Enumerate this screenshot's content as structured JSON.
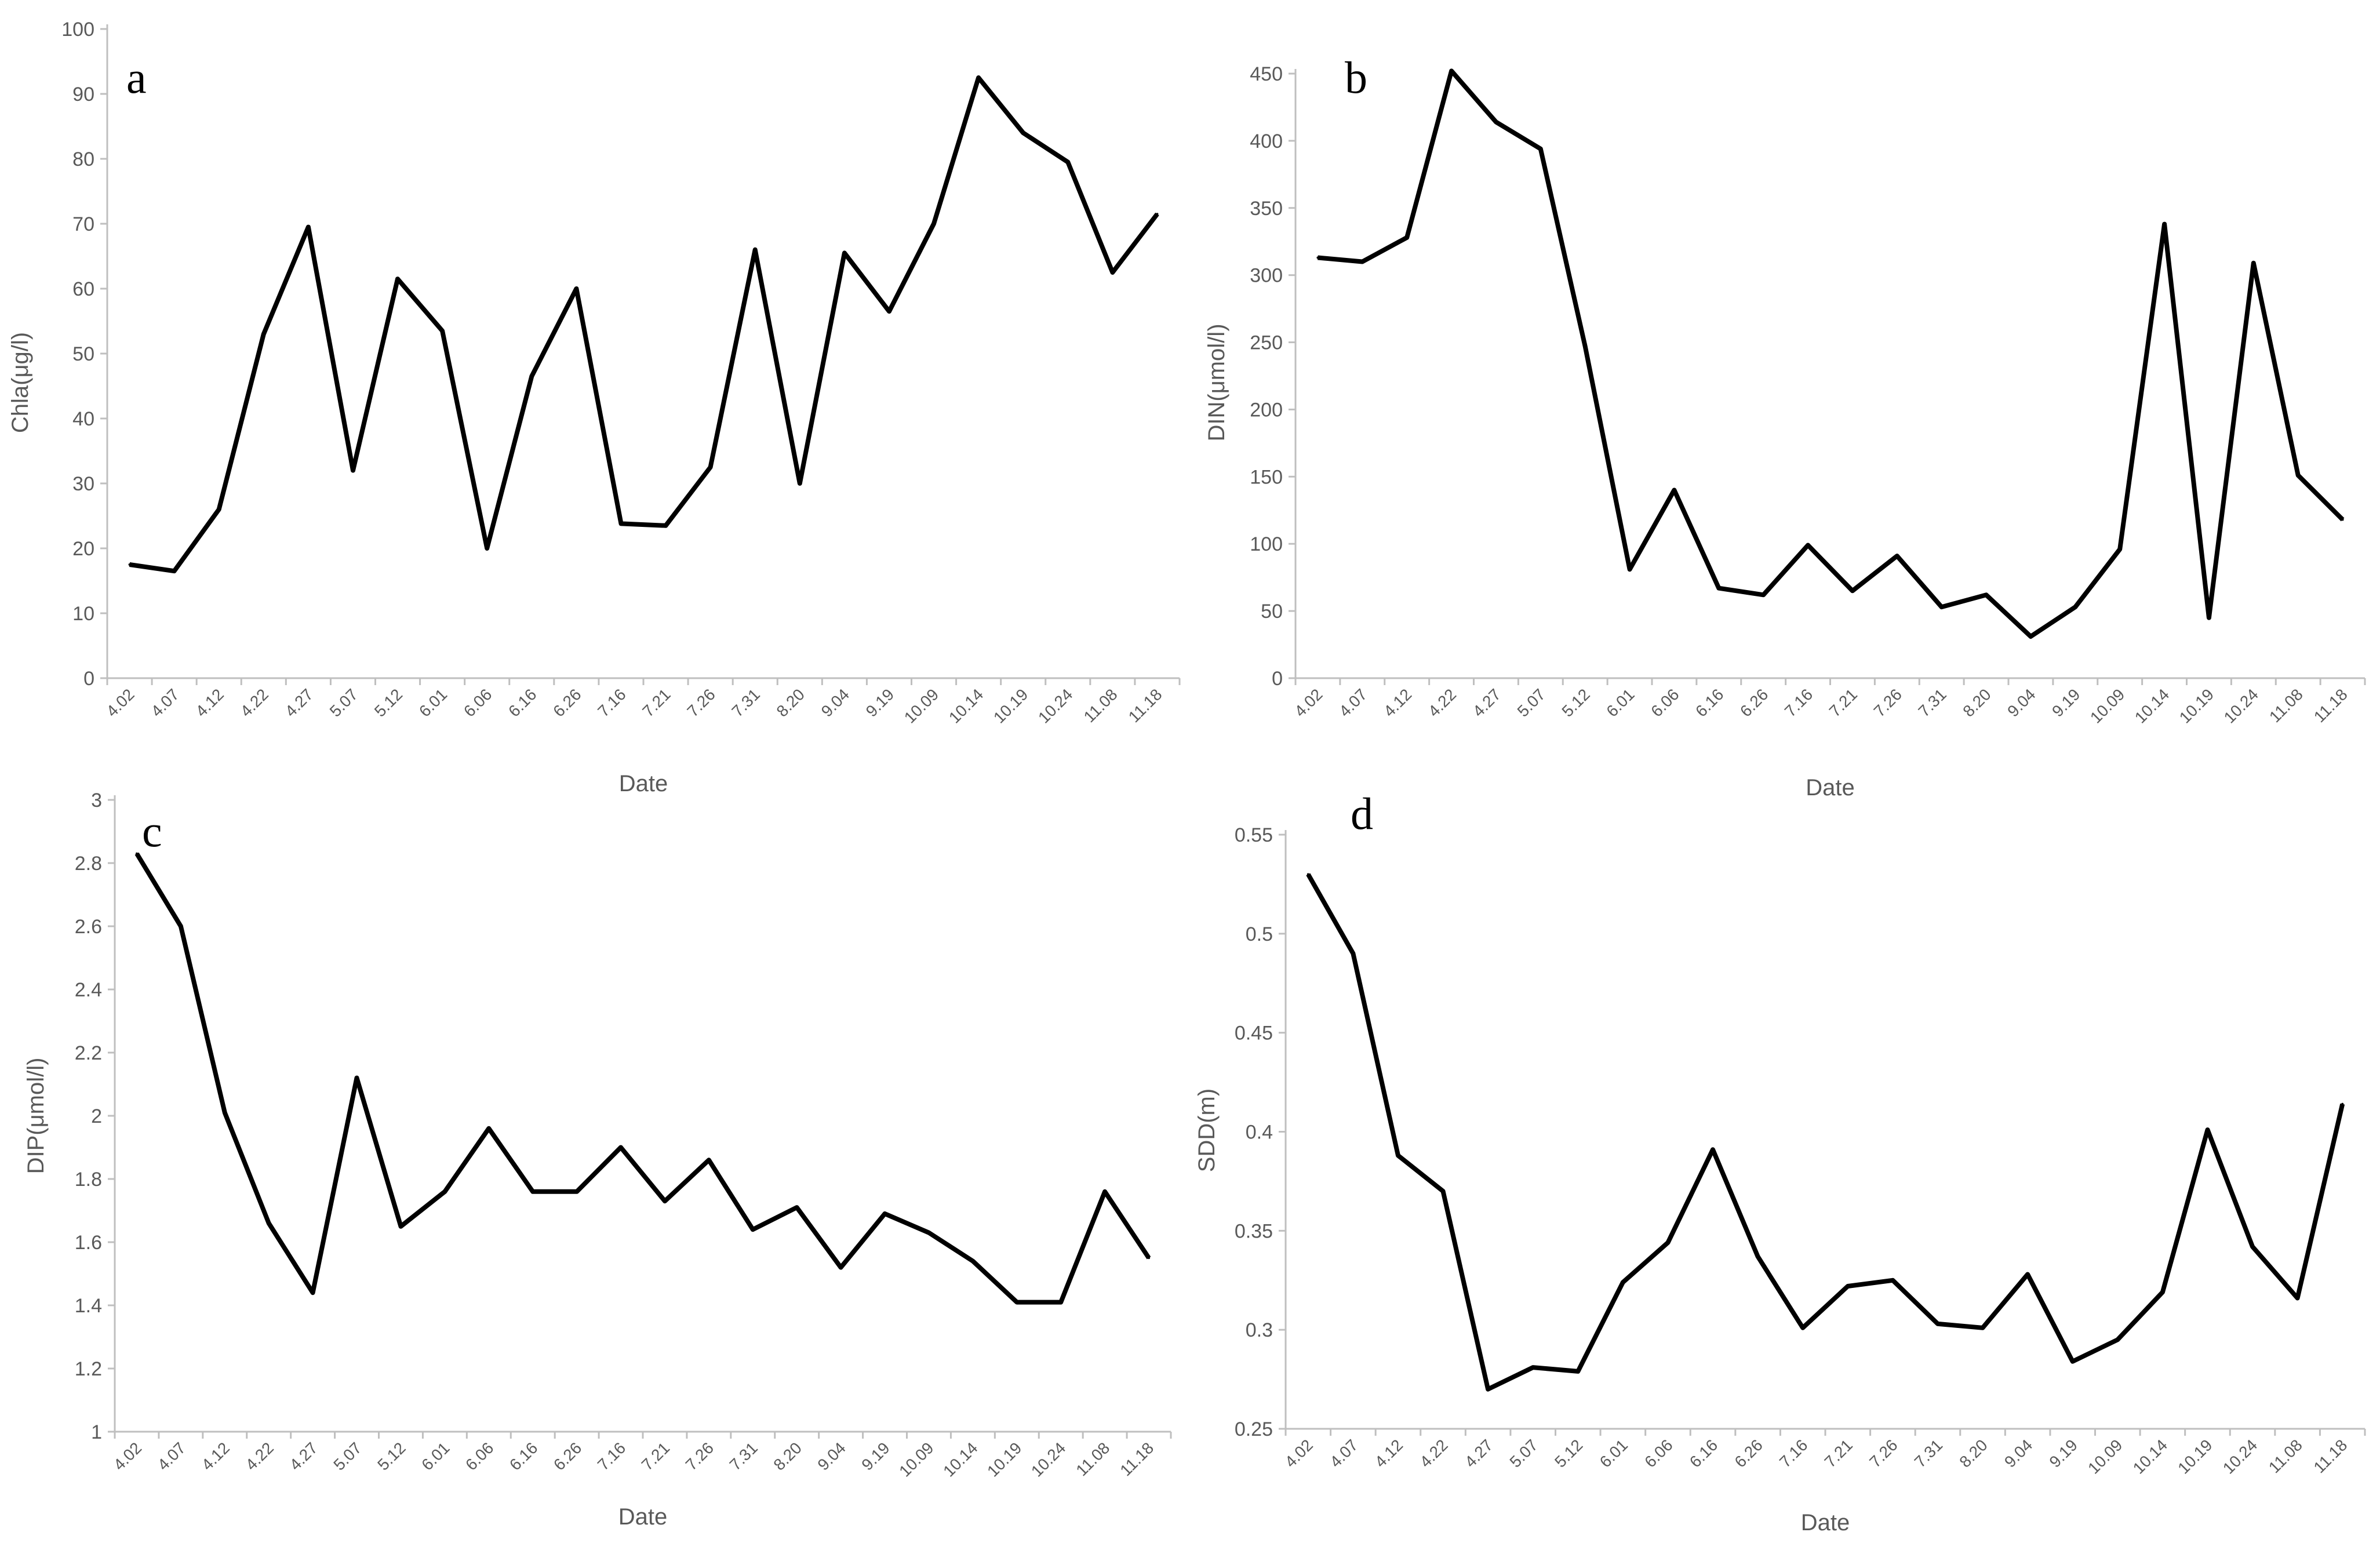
{
  "chart_data": [
    {
      "type": "line",
      "panel_label": "a",
      "xlabel": "Date",
      "ylabel": "Chla(μg/l)",
      "ylim": [
        0,
        100
      ],
      "yticks": [
        "0",
        "10",
        "20",
        "30",
        "40",
        "50",
        "60",
        "70",
        "80",
        "90",
        "100"
      ],
      "categories": [
        "4.02",
        "4.07",
        "4.12",
        "4.22",
        "4.27",
        "5.07",
        "5.12",
        "6.01",
        "6.06",
        "6.16",
        "6.26",
        "7.16",
        "7.21",
        "7.26",
        "7.31",
        "8.20",
        "9.04",
        "9.19",
        "10.09",
        "10.14",
        "10.19",
        "10.24",
        "11.08",
        "11.18"
      ],
      "values": [
        17.5,
        16.5,
        26,
        53,
        69.5,
        32,
        61.5,
        53.5,
        20,
        46.5,
        60,
        23.8,
        23.5,
        32.5,
        66,
        30,
        65.5,
        56.5,
        70,
        92.5,
        84,
        79.5,
        62.5,
        71.5
      ],
      "grid": false
    },
    {
      "type": "line",
      "panel_label": "b",
      "xlabel": "Date",
      "ylabel": "DIN(μmol/l)",
      "ylim": [
        0,
        450
      ],
      "yticks": [
        "0",
        "50",
        "100",
        "150",
        "200",
        "250",
        "300",
        "350",
        "400",
        "450"
      ],
      "categories": [
        "4.02",
        "4.07",
        "4.12",
        "4.22",
        "4.27",
        "5.07",
        "5.12",
        "6.01",
        "6.06",
        "6.16",
        "6.26",
        "7.16",
        "7.21",
        "7.26",
        "7.31",
        "8.20",
        "9.04",
        "9.19",
        "10.09",
        "10.14",
        "10.19",
        "10.24",
        "11.08",
        "11.18"
      ],
      "values": [
        313,
        310,
        328,
        452,
        414,
        394,
        247,
        81,
        140,
        67,
        62,
        99,
        65,
        91,
        53,
        62,
        31,
        53,
        96,
        338,
        45,
        309,
        151,
        118
      ],
      "grid": false
    },
    {
      "type": "line",
      "panel_label": "c",
      "xlabel": "Date",
      "ylabel": "DIP(μmol/l)",
      "ylim": [
        1,
        3
      ],
      "yticks": [
        "1",
        "1.2",
        "1.4",
        "1.6",
        "1.8",
        "2",
        "2.2",
        "2.4",
        "2.6",
        "2.8",
        "3"
      ],
      "categories": [
        "4.02",
        "4.07",
        "4.12",
        "4.22",
        "4.27",
        "5.07",
        "5.12",
        "6.01",
        "6.06",
        "6.16",
        "6.26",
        "7.16",
        "7.21",
        "7.26",
        "7.31",
        "8.20",
        "9.04",
        "9.19",
        "10.09",
        "10.14",
        "10.19",
        "10.24",
        "11.08",
        "11.18"
      ],
      "values": [
        2.83,
        2.6,
        2.01,
        1.66,
        1.44,
        2.12,
        1.65,
        1.76,
        1.96,
        1.76,
        1.76,
        1.9,
        1.73,
        1.86,
        1.64,
        1.71,
        1.52,
        1.69,
        1.63,
        1.54,
        1.41,
        1.41,
        1.76,
        1.55
      ],
      "grid": false
    },
    {
      "type": "line",
      "panel_label": "d",
      "xlabel": "Date",
      "ylabel": "SDD(m)",
      "ylim": [
        0.25,
        0.55
      ],
      "yticks": [
        "0.25",
        "0.3",
        "0.35",
        "0.4",
        "0.45",
        "0.5",
        "0.55"
      ],
      "categories": [
        "4.02",
        "4.07",
        "4.12",
        "4.22",
        "4.27",
        "5.07",
        "5.12",
        "6.01",
        "6.06",
        "6.16",
        "6.26",
        "7.16",
        "7.21",
        "7.26",
        "7.31",
        "8.20",
        "9.04",
        "9.19",
        "10.09",
        "10.14",
        "10.19",
        "10.24",
        "11.08",
        "11.18"
      ],
      "values": [
        0.53,
        0.49,
        0.388,
        0.37,
        0.27,
        0.281,
        0.279,
        0.324,
        0.344,
        0.391,
        0.337,
        0.301,
        0.322,
        0.325,
        0.303,
        0.301,
        0.328,
        0.284,
        0.295,
        0.319,
        0.401,
        0.342,
        0.316,
        0.414
      ],
      "grid": false
    }
  ],
  "colors": {
    "line": "#000000",
    "axis": "#bfbfbf",
    "text": "#595959"
  }
}
